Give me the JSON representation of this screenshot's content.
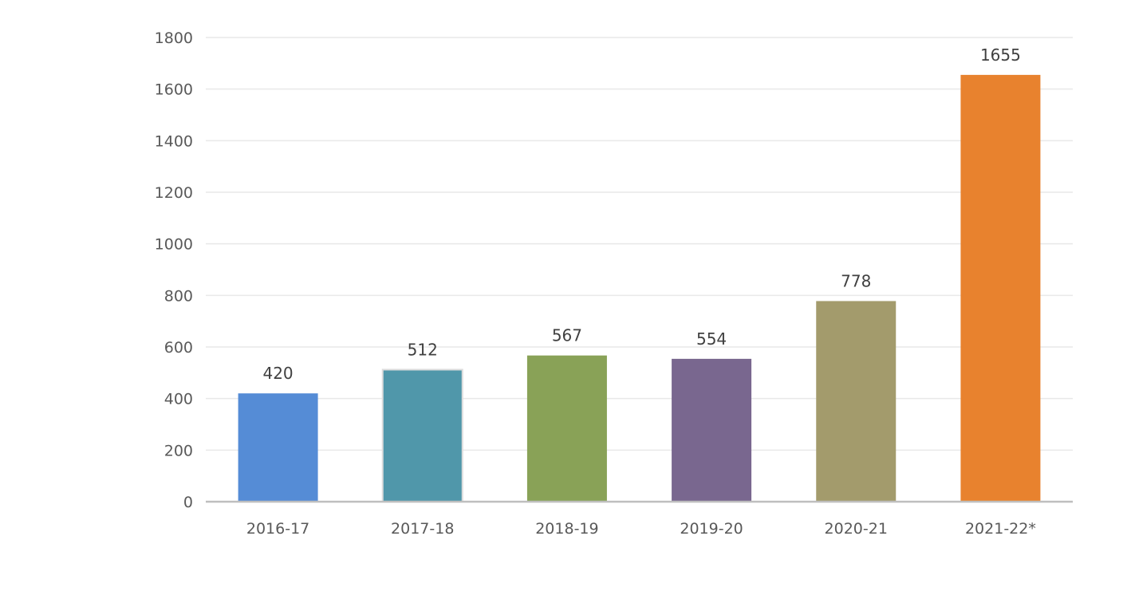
{
  "chart_data": {
    "type": "bar",
    "categories": [
      "2016-17",
      "2017-18",
      "2018-19",
      "2019-20",
      "2020-21",
      "2021-22*"
    ],
    "values": [
      420,
      512,
      567,
      554,
      778,
      1655
    ],
    "data_labels": [
      "420",
      "512",
      "567",
      "554",
      "778",
      "1655"
    ],
    "colors": [
      "#558cd6",
      "#5097aa",
      "#89a257",
      "#79678f",
      "#a39b6c",
      "#e8822e"
    ],
    "title": "",
    "xlabel": "",
    "ylabel": "",
    "ylim": [
      0,
      1800
    ],
    "yticks": [
      0,
      200,
      400,
      600,
      800,
      1000,
      1200,
      1400,
      1600,
      1800
    ],
    "grid": true,
    "legend": "none"
  }
}
